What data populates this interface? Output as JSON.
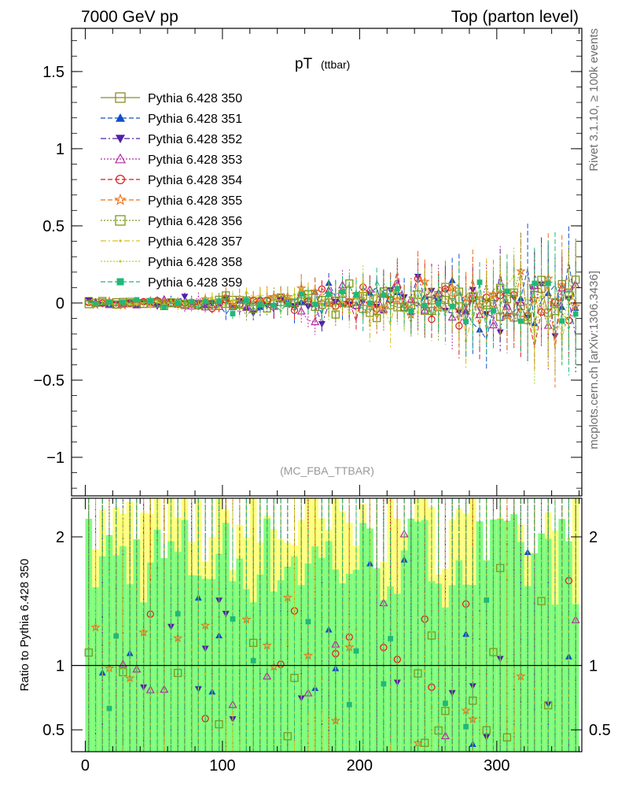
{
  "header": {
    "left": "7000 GeV pp",
    "right": "Top (parton level)"
  },
  "side_labels": {
    "rivet": "Rivet 3.1.10, ≥ 100k events",
    "mcplots": "mcplots.cern.ch [arXiv:1306.3436]"
  },
  "chart_data": [
    {
      "type": "line",
      "title_main": "pT",
      "title_sub": "(ttbar)",
      "watermark": "(MC_FBA_TTBAR)",
      "xlim": [
        -10,
        362
      ],
      "ylim": [
        -1.25,
        1.78
      ],
      "yticks": [
        1.5,
        1,
        0.5,
        0,
        -0.5,
        -1
      ],
      "ytick_labels": [
        "1.5",
        "1",
        "0.5",
        "0",
        "−0.5",
        "−1"
      ],
      "legend_position": "top-left",
      "bin_start": 2.5,
      "bin_width": 5,
      "n_bins": 72,
      "series": [
        {
          "name": "Pythia 6.428 350",
          "color": "#8c8c28",
          "marker": "open-square",
          "dash": "solid"
        },
        {
          "name": "Pythia 6.428 351",
          "color": "#1050c8",
          "marker": "filled-triangle-up",
          "dash": "dashed"
        },
        {
          "name": "Pythia 6.428 352",
          "color": "#5020a8",
          "marker": "filled-triangle-down",
          "dash": "dashdot"
        },
        {
          "name": "Pythia 6.428 353",
          "color": "#b42aa0",
          "marker": "open-triangle-up",
          "dash": "dotted"
        },
        {
          "name": "Pythia 6.428 354",
          "color": "#e01818",
          "marker": "open-circle",
          "dash": "dashed"
        },
        {
          "name": "Pythia 6.428 355",
          "color": "#f07018",
          "marker": "open-star",
          "dash": "dashed"
        },
        {
          "name": "Pythia 6.428 356",
          "color": "#7a9a18",
          "marker": "open-square",
          "dash": "dotted"
        },
        {
          "name": "Pythia 6.428 357",
          "color": "#d8c020",
          "marker": "small-dot",
          "dash": "dashdot"
        },
        {
          "name": "Pythia 6.428 358",
          "color": "#b0d028",
          "marker": "small-dot",
          "dash": "dotted"
        },
        {
          "name": "Pythia 6.428 359",
          "color": "#20b878",
          "marker": "filled-square",
          "dash": "dashed"
        }
      ]
    },
    {
      "type": "line",
      "ylabel": "Ratio to Pythia 6.428 350",
      "xlim": [
        -10,
        362
      ],
      "ylim": [
        0.33,
        2.3
      ],
      "xticks": [
        0,
        100,
        200,
        300
      ],
      "xtick_labels": [
        "0",
        "100",
        "200",
        "300"
      ],
      "yticks": [
        2,
        1,
        0.5
      ],
      "ytick_labels": [
        "2",
        "1",
        "0.5"
      ],
      "reference_line": 1,
      "band_colors": [
        "#ffff80",
        "#80ff80"
      ]
    }
  ]
}
